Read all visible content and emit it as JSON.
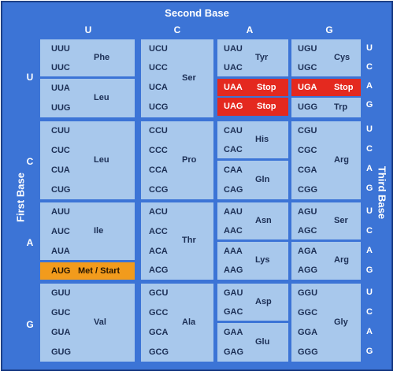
{
  "title_top": "Second Base",
  "title_left": "First Base",
  "title_right": "Third Base",
  "second_base": [
    "U",
    "C",
    "A",
    "G"
  ],
  "first_base": [
    "U",
    "C",
    "A",
    "G"
  ],
  "third_base": [
    "U",
    "C",
    "A",
    "G"
  ],
  "colors": {
    "background": "#3c74d6",
    "cell": "#a8c8ec",
    "stop": "#e4291f",
    "start": "#f29b1c"
  },
  "codons": {
    "r0c0": [
      "UUU",
      "UUC",
      "UUA",
      "UUG"
    ],
    "r0c1": [
      "UCU",
      "UCC",
      "UCA",
      "UCG"
    ],
    "r0c2": [
      "UAU",
      "UAC",
      "UAA",
      "UAG"
    ],
    "r0c3": [
      "UGU",
      "UGC",
      "UGA",
      "UGG"
    ],
    "r1c0": [
      "CUU",
      "CUC",
      "CUA",
      "CUG"
    ],
    "r1c1": [
      "CCU",
      "CCC",
      "CCA",
      "CCG"
    ],
    "r1c2": [
      "CAU",
      "CAC",
      "CAA",
      "CAG"
    ],
    "r1c3": [
      "CGU",
      "CGC",
      "CGA",
      "CGG"
    ],
    "r2c0": [
      "AUU",
      "AUC",
      "AUA",
      "AUG"
    ],
    "r2c1": [
      "ACU",
      "ACC",
      "ACA",
      "ACG"
    ],
    "r2c2": [
      "AAU",
      "AAC",
      "AAA",
      "AAG"
    ],
    "r2c3": [
      "AGU",
      "AGC",
      "AGA",
      "AGG"
    ],
    "r3c0": [
      "GUU",
      "GUC",
      "GUA",
      "GUG"
    ],
    "r3c1": [
      "GCU",
      "GCC",
      "GCA",
      "GCG"
    ],
    "r3c2": [
      "GAU",
      "GAC",
      "GAA",
      "GAG"
    ],
    "r3c3": [
      "GGU",
      "GGC",
      "GGA",
      "GGG"
    ]
  },
  "amino_acids": {
    "phe": "Phe",
    "leu": "Leu",
    "ser": "Ser",
    "tyr": "Tyr",
    "stop": "Stop",
    "cys": "Cys",
    "trp": "Trp",
    "pro": "Pro",
    "his": "His",
    "gln": "Gln",
    "arg": "Arg",
    "ile": "Ile",
    "met_start": "Met / Start",
    "thr": "Thr",
    "asn": "Asn",
    "lys": "Lys",
    "val": "Val",
    "ala": "Ala",
    "asp": "Asp",
    "glu": "Glu",
    "gly": "Gly"
  }
}
